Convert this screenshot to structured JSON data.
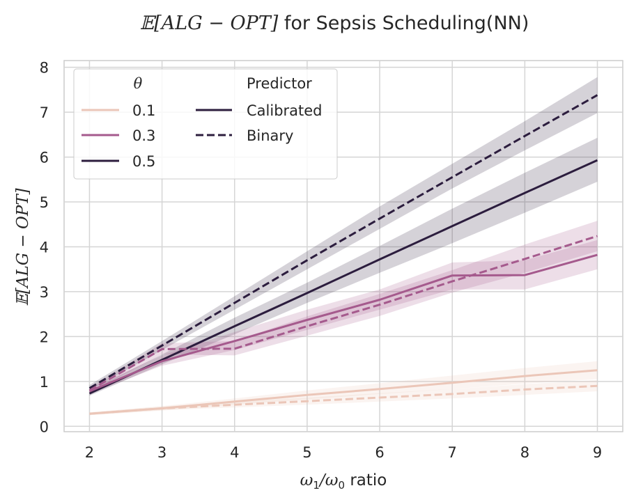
{
  "chart_data": {
    "type": "line",
    "title": "𝔼[ALG − OPT] for Sepsis Scheduling(NN)",
    "xlabel": "ω₁/ω₀ ratio",
    "ylabel": "𝔼[ALG − OPT]",
    "x": [
      2,
      3,
      4,
      5,
      6,
      7,
      8,
      9
    ],
    "xticks": [
      "2",
      "3",
      "4",
      "5",
      "6",
      "7",
      "8",
      "9"
    ],
    "yticks": [
      "0",
      "1",
      "2",
      "3",
      "4",
      "5",
      "6",
      "7",
      "8"
    ],
    "xlim": [
      1.65,
      9.35
    ],
    "ylim": [
      -0.12,
      8.15
    ],
    "grid": true,
    "legend": {
      "placement": "top-left",
      "hue_title": "θ",
      "hue_entries": [
        "0.1",
        "0.3",
        "0.5"
      ],
      "style_title": "Predictor",
      "style_entries": [
        "Calibrated",
        "Binary"
      ]
    },
    "colors": {
      "0.1": "#ebc6b8",
      "0.3": "#a55a8d",
      "0.5": "#2c1d3e"
    },
    "series": [
      {
        "theta": "0.5",
        "predictor": "Binary",
        "dash": true,
        "values": [
          0.85,
          1.8,
          2.75,
          3.7,
          4.63,
          5.55,
          6.47,
          7.38
        ],
        "lower": [
          0.8,
          1.7,
          2.6,
          3.5,
          4.4,
          5.3,
          6.15,
          6.98
        ],
        "upper": [
          0.92,
          1.9,
          2.9,
          3.9,
          4.9,
          5.85,
          6.8,
          7.78
        ]
      },
      {
        "theta": "0.5",
        "predictor": "Calibrated",
        "dash": false,
        "values": [
          0.73,
          1.48,
          2.23,
          2.97,
          3.72,
          4.46,
          5.2,
          5.93
        ],
        "lower": [
          0.68,
          1.38,
          2.05,
          2.75,
          3.42,
          4.08,
          4.76,
          5.45
        ],
        "upper": [
          0.8,
          1.6,
          2.42,
          3.2,
          4.02,
          4.85,
          5.65,
          6.43
        ]
      },
      {
        "theta": "0.3",
        "predictor": "Binary",
        "dash": true,
        "values": [
          0.8,
          1.72,
          1.73,
          2.23,
          2.71,
          3.23,
          3.73,
          4.24
        ],
        "lower": [
          0.75,
          1.6,
          1.58,
          2.02,
          2.46,
          2.98,
          3.42,
          3.9
        ],
        "upper": [
          0.86,
          1.85,
          1.9,
          2.45,
          2.95,
          3.48,
          4.05,
          4.58
        ]
      },
      {
        "theta": "0.3",
        "predictor": "Calibrated",
        "dash": false,
        "values": [
          0.78,
          1.45,
          1.9,
          2.37,
          2.82,
          3.36,
          3.37,
          3.82
        ],
        "lower": [
          0.72,
          1.35,
          1.7,
          2.15,
          2.6,
          3.05,
          3.05,
          3.5
        ],
        "upper": [
          0.85,
          1.58,
          2.1,
          2.6,
          3.05,
          3.65,
          3.7,
          4.15
        ]
      },
      {
        "theta": "0.1",
        "predictor": "Calibrated",
        "dash": false,
        "values": [
          0.28,
          0.4,
          0.55,
          0.7,
          0.83,
          0.97,
          1.12,
          1.25
        ],
        "lower": [
          0.25,
          0.35,
          0.48,
          0.6,
          0.72,
          0.83,
          0.95,
          1.05
        ],
        "upper": [
          0.31,
          0.45,
          0.62,
          0.8,
          0.96,
          1.13,
          1.3,
          1.45
        ]
      },
      {
        "theta": "0.1",
        "predictor": "Binary",
        "dash": true,
        "values": [
          0.28,
          0.4,
          0.48,
          0.56,
          0.64,
          0.72,
          0.82,
          0.9
        ],
        "lower": [
          0.25,
          0.36,
          0.42,
          0.48,
          0.55,
          0.62,
          0.7,
          0.78
        ],
        "upper": [
          0.31,
          0.44,
          0.55,
          0.64,
          0.74,
          0.83,
          0.94,
          1.03
        ]
      }
    ]
  }
}
